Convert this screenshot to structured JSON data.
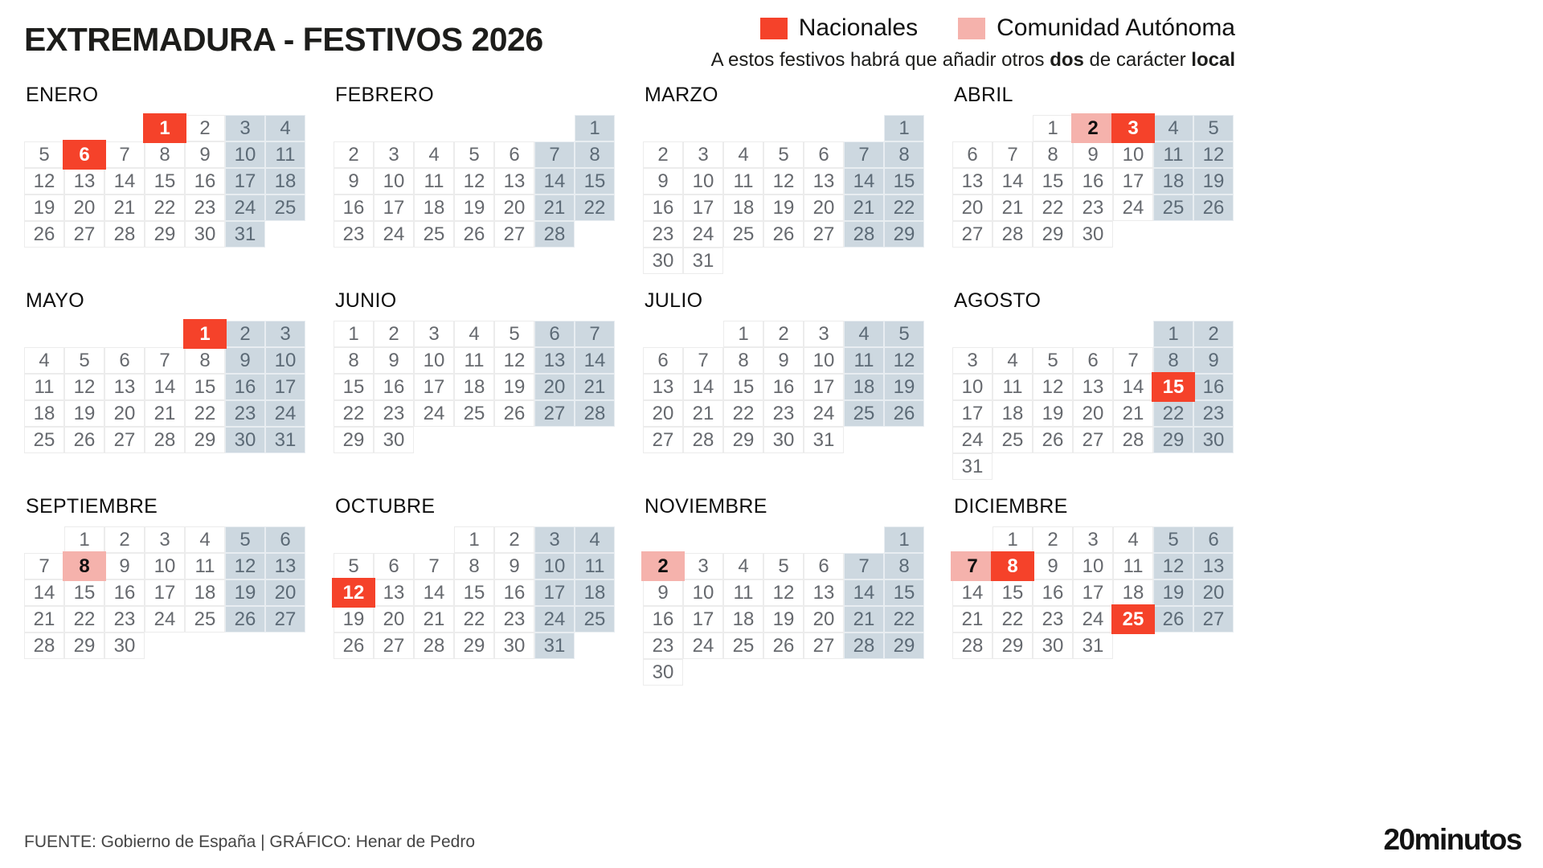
{
  "title": "EXTREMADURA - FESTIVOS 2026",
  "legend": {
    "national_label": "Nacionales",
    "regional_label": "Comunidad Autónoma",
    "note": {
      "prefix": "A estos festivos habrá que añadir otros ",
      "bold1": "dos",
      "mid": " de carácter ",
      "bold2": "local"
    }
  },
  "colors": {
    "national": "#f5422a",
    "regional": "#f5b2ac",
    "weekend": "#cdd8e0",
    "day_text": "#66696e",
    "weekend_text": "#5c6a76"
  },
  "months": [
    {
      "name": "ENERO",
      "first_dow": 3,
      "days": 31,
      "national": [
        1,
        6
      ],
      "regional": []
    },
    {
      "name": "FEBRERO",
      "first_dow": 6,
      "days": 28,
      "national": [],
      "regional": []
    },
    {
      "name": "MARZO",
      "first_dow": 6,
      "days": 31,
      "national": [],
      "regional": []
    },
    {
      "name": "ABRIL",
      "first_dow": 2,
      "days": 30,
      "national": [
        3
      ],
      "regional": [
        2
      ]
    },
    {
      "name": "MAYO",
      "first_dow": 4,
      "days": 31,
      "national": [
        1
      ],
      "regional": []
    },
    {
      "name": "JUNIO",
      "first_dow": 0,
      "days": 30,
      "national": [],
      "regional": []
    },
    {
      "name": "JULIO",
      "first_dow": 2,
      "days": 31,
      "national": [],
      "regional": []
    },
    {
      "name": "AGOSTO",
      "first_dow": 5,
      "days": 31,
      "national": [
        15
      ],
      "regional": []
    },
    {
      "name": "SEPTIEMBRE",
      "first_dow": 1,
      "days": 30,
      "national": [],
      "regional": [
        8
      ]
    },
    {
      "name": "OCTUBRE",
      "first_dow": 3,
      "days": 31,
      "national": [
        12
      ],
      "regional": []
    },
    {
      "name": "NOVIEMBRE",
      "first_dow": 6,
      "days": 30,
      "national": [],
      "regional": [
        2
      ]
    },
    {
      "name": "DICIEMBRE",
      "first_dow": 1,
      "days": 31,
      "national": [
        8,
        25
      ],
      "regional": [
        7
      ]
    }
  ],
  "footer": {
    "source": "FUENTE: Gobierno de España  |  GRÁFICO: Henar de Pedro",
    "logo": "20minutos"
  }
}
